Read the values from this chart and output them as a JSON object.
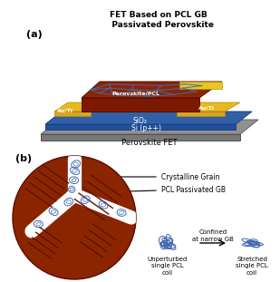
{
  "title_a": "FET Based on PCL GB\n   Passivated Perovskite",
  "label_a": "(a)",
  "label_b": "(b)",
  "perovskite_color": "#8B2500",
  "perovskite_dark": "#6B1A00",
  "pcl_line_color": "#4169B0",
  "sio2_color": "#4169B0",
  "si_color": "#808080",
  "au_color": "#DAA520",
  "background": "#FFFFFF",
  "grain_line_color": "#5a3010",
  "gb_path_color": "#FFFFFF",
  "coil_color": "#4169B0",
  "arrow_color": "#000000"
}
